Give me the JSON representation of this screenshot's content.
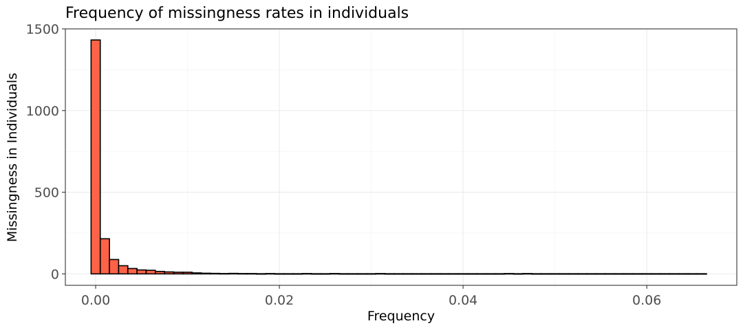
{
  "chart_data": {
    "type": "bar",
    "title": "Frequency of missingness rates in individuals",
    "xlabel": "Frequency",
    "ylabel": "Missingness in Individuals",
    "xlim": [
      -0.0033,
      0.0698
    ],
    "ylim": [
      -70,
      1500
    ],
    "xticks": [
      0.0,
      0.02,
      0.04,
      0.06
    ],
    "xtick_labels": [
      "0.00",
      "0.02",
      "0.04",
      "0.06"
    ],
    "yticks": [
      0,
      500,
      1000,
      1500
    ],
    "ytick_labels": [
      "0",
      "500",
      "1000",
      "1500"
    ],
    "grid": true,
    "legend": "none",
    "bin_width": 0.001,
    "bins_start": -0.0005,
    "series": [
      {
        "values": [
          1432,
          215,
          88,
          50,
          33,
          24,
          22,
          15,
          12,
          10,
          10,
          6,
          4,
          3,
          2,
          3,
          2,
          2,
          1,
          2,
          1,
          1,
          1,
          2,
          1,
          1,
          2,
          1,
          1,
          1,
          1,
          2,
          1,
          1,
          1,
          1,
          1,
          1,
          1,
          1,
          1,
          1,
          1,
          1,
          1,
          2,
          1,
          2,
          1,
          1,
          1,
          1,
          1,
          1,
          1,
          1,
          1,
          1,
          1,
          1,
          1,
          1,
          1,
          1,
          1,
          1,
          1
        ]
      }
    ]
  },
  "colors": {
    "bar_fill": "#FF6347",
    "bar_outline": "#000000",
    "panel_border": "#333333",
    "grid": "#ebebeb"
  }
}
